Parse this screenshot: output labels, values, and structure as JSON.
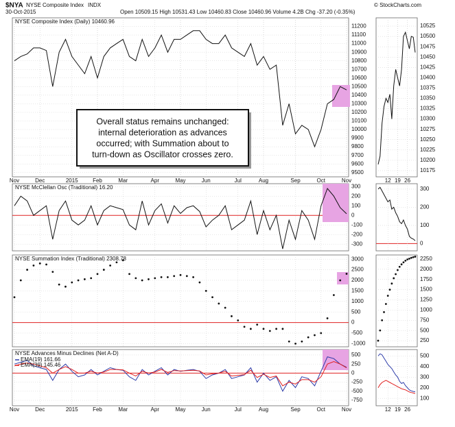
{
  "header": {
    "symbol": "$NYA",
    "name": "NYSE Composite Index",
    "exchange": "INDX",
    "source": "© StockCharts.com",
    "date": "30-Oct-2015",
    "quote": "Open 10509.15 High 10531.43 Low 10460.83 Close 10460.96 Volume 4.2B Chg -37.20 (-0.35%)"
  },
  "annotation": [
    "Overall status remains unchanged:",
    "internal deterioration as advances",
    "occurred; with Summation about to",
    "turn-down as Oscillator crosses zero."
  ],
  "chart_data": [
    {
      "type": "line",
      "title": "NYSE Composite Index (Daily) 10460.96",
      "color": "#111111",
      "categories": [
        "Nov",
        null,
        null,
        null,
        "Dec",
        null,
        null,
        null,
        null,
        "2015",
        null,
        null,
        null,
        "Feb",
        null,
        null,
        null,
        "Mar",
        null,
        null,
        null,
        null,
        "Apr",
        null,
        null,
        null,
        "May",
        null,
        null,
        null,
        "Jun",
        null,
        null,
        null,
        null,
        "Jul",
        null,
        null,
        null,
        "Aug",
        null,
        null,
        null,
        null,
        "Sep",
        null,
        null,
        null,
        "Oct",
        null,
        null,
        null,
        "Nov"
      ],
      "values": [
        10800,
        10850,
        10880,
        10950,
        10950,
        10920,
        10500,
        10900,
        11050,
        10850,
        10750,
        10650,
        10850,
        10600,
        10850,
        10950,
        11000,
        11050,
        10850,
        10800,
        11050,
        10850,
        10950,
        11100,
        10900,
        11050,
        11050,
        11100,
        11150,
        11150,
        11050,
        11000,
        11000,
        11100,
        10950,
        10900,
        10850,
        11000,
        10750,
        10850,
        10700,
        10750,
        10050,
        10300,
        9950,
        10050,
        10000,
        9800,
        10000,
        10300,
        10350,
        10500,
        10460.96
      ],
      "ylim": [
        9450,
        11300
      ],
      "yticks": [
        9500,
        9600,
        9700,
        9800,
        9900,
        10000,
        10100,
        10200,
        10300,
        10400,
        10500,
        10600,
        10700,
        10800,
        10900,
        11000,
        11100,
        11200
      ],
      "grid": true
    },
    {
      "type": "line",
      "color": "#111111",
      "categories": [
        null,
        null,
        null,
        null,
        null,
        "12",
        null,
        null,
        null,
        null,
        "19",
        null,
        null,
        null,
        null,
        "26",
        null,
        null,
        null,
        null
      ],
      "values": [
        10190,
        10210,
        10290,
        10330,
        10350,
        10340,
        10360,
        10300,
        10380,
        10420,
        10400,
        10380,
        10420,
        10500,
        10510,
        10490,
        10470,
        10500,
        10498,
        10460.96
      ],
      "ylim": [
        10160,
        10545
      ],
      "yticks": [
        10175,
        10200,
        10225,
        10250,
        10275,
        10300,
        10325,
        10350,
        10375,
        10400,
        10425,
        10450,
        10475,
        10500,
        10525
      ],
      "grid": true
    },
    {
      "type": "line",
      "title": "NYSE McClellan Osc (Traditional) 16.20",
      "color": "#111111",
      "reference_line": 0,
      "values": [
        100,
        200,
        150,
        0,
        50,
        100,
        -250,
        50,
        150,
        -50,
        -100,
        -50,
        100,
        -100,
        50,
        100,
        80,
        60,
        -100,
        -150,
        150,
        -100,
        50,
        120,
        -80,
        100,
        20,
        80,
        100,
        40,
        -120,
        -50,
        0,
        100,
        -150,
        -100,
        -50,
        150,
        -200,
        50,
        -150,
        0,
        -350,
        -50,
        -250,
        50,
        -50,
        -250,
        100,
        280,
        200,
        80,
        16.2
      ],
      "ylim": [
        -370,
        330
      ],
      "yticks": [
        -300,
        -200,
        -100,
        0,
        100,
        200,
        300
      ],
      "grid": true
    },
    {
      "type": "line",
      "color": "#111111",
      "reference_line": 0,
      "values": [
        300,
        310,
        290,
        270,
        250,
        230,
        240,
        190,
        200,
        170,
        150,
        120,
        110,
        130,
        100,
        80,
        40,
        30,
        25,
        16.2
      ],
      "ylim": [
        -40,
        330
      ],
      "yticks": [
        0,
        100,
        200,
        300
      ],
      "grid": true
    },
    {
      "type": "dots",
      "title": "NYSE Summation Index (Traditional) 2308.78",
      "color": "#111111",
      "reference_line": 0,
      "values": [
        1200,
        2000,
        2500,
        2700,
        2800,
        2750,
        2400,
        1800,
        1700,
        1900,
        2000,
        2050,
        2100,
        2300,
        2500,
        2700,
        2850,
        2950,
        2300,
        2100,
        2000,
        2050,
        2100,
        2150,
        2150,
        2200,
        2250,
        2200,
        2150,
        1900,
        1500,
        1200,
        900,
        700,
        300,
        100,
        -200,
        -300,
        -100,
        -300,
        -400,
        -300,
        -300,
        -900,
        -1000,
        -900,
        -700,
        -600,
        -500,
        200,
        1300,
        2000,
        2308.78
      ],
      "ylim": [
        -1150,
        3200
      ],
      "yticks": [
        -1000,
        -500,
        0,
        500,
        1000,
        1500,
        2000,
        2500,
        3000
      ],
      "grid": true
    },
    {
      "type": "dots",
      "color": "#111111",
      "values": [
        250,
        500,
        750,
        950,
        1150,
        1350,
        1500,
        1650,
        1780,
        1880,
        1980,
        2060,
        2120,
        2170,
        2210,
        2240,
        2260,
        2280,
        2295,
        2308.78
      ],
      "ylim": [
        100,
        2350
      ],
      "yticks": [
        250,
        500,
        750,
        1000,
        1250,
        1500,
        1750,
        2000,
        2250
      ],
      "grid": true
    },
    {
      "type": "line",
      "title": "NYSE Advances Minus Declines (Net A-D)",
      "reference_line": 0,
      "categories": [
        "Nov",
        null,
        null,
        null,
        "Dec",
        null,
        null,
        null,
        null,
        "2015",
        null,
        null,
        null,
        "Feb",
        null,
        null,
        null,
        "Mar",
        null,
        null,
        null,
        null,
        "Apr",
        null,
        null,
        null,
        "May",
        null,
        null,
        null,
        "Jun",
        null,
        null,
        null,
        null,
        "Jul",
        null,
        null,
        null,
        "Aug",
        null,
        null,
        null,
        null,
        "Sep",
        null,
        null,
        null,
        "Oct",
        null,
        null,
        null,
        "Nov"
      ],
      "series": [
        {
          "name": "EMA(19) 161.66",
          "color": "#2b3aa8",
          "values": [
            250,
            300,
            350,
            200,
            150,
            100,
            -200,
            100,
            250,
            50,
            -100,
            -50,
            100,
            -50,
            50,
            150,
            100,
            80,
            -100,
            -200,
            100,
            -50,
            50,
            150,
            -50,
            100,
            50,
            80,
            100,
            50,
            -150,
            -50,
            0,
            100,
            -150,
            -100,
            -50,
            150,
            -250,
            0,
            -200,
            -100,
            -500,
            -200,
            -400,
            -100,
            -150,
            -350,
            50,
            450,
            400,
            250,
            161.66
          ]
        },
        {
          "name": "EMA(39) 145.46",
          "color": "#e02020",
          "values": [
            200,
            250,
            280,
            250,
            200,
            150,
            0,
            100,
            180,
            100,
            0,
            0,
            50,
            0,
            30,
            100,
            100,
            90,
            0,
            -80,
            50,
            0,
            30,
            100,
            20,
            70,
            60,
            70,
            80,
            60,
            -50,
            -20,
            0,
            50,
            -80,
            -60,
            -40,
            80,
            -120,
            -30,
            -120,
            -80,
            -350,
            -250,
            -300,
            -180,
            -180,
            -250,
            -100,
            250,
            320,
            250,
            145.46
          ]
        }
      ],
      "ylim": [
        -900,
        650
      ],
      "yticks": [
        -750,
        -500,
        -250,
        0,
        250,
        500
      ],
      "grid": true
    },
    {
      "type": "line",
      "categories": [
        null,
        null,
        null,
        null,
        null,
        "12",
        null,
        null,
        null,
        null,
        "19",
        null,
        null,
        null,
        null,
        "26",
        null,
        null,
        null,
        null
      ],
      "series": [
        {
          "color": "#2b3aa8",
          "values": [
            500,
            520,
            510,
            480,
            450,
            420,
            400,
            380,
            350,
            320,
            300,
            260,
            240,
            250,
            220,
            200,
            180,
            170,
            165,
            161.66
          ]
        },
        {
          "color": "#e02020",
          "values": [
            200,
            230,
            250,
            260,
            270,
            260,
            250,
            240,
            230,
            220,
            210,
            200,
            190,
            185,
            180,
            170,
            160,
            155,
            150,
            145.46
          ]
        }
      ],
      "ylim": [
        30,
        560
      ],
      "yticks": [
        100,
        200,
        300,
        400,
        500
      ],
      "grid": true
    }
  ]
}
